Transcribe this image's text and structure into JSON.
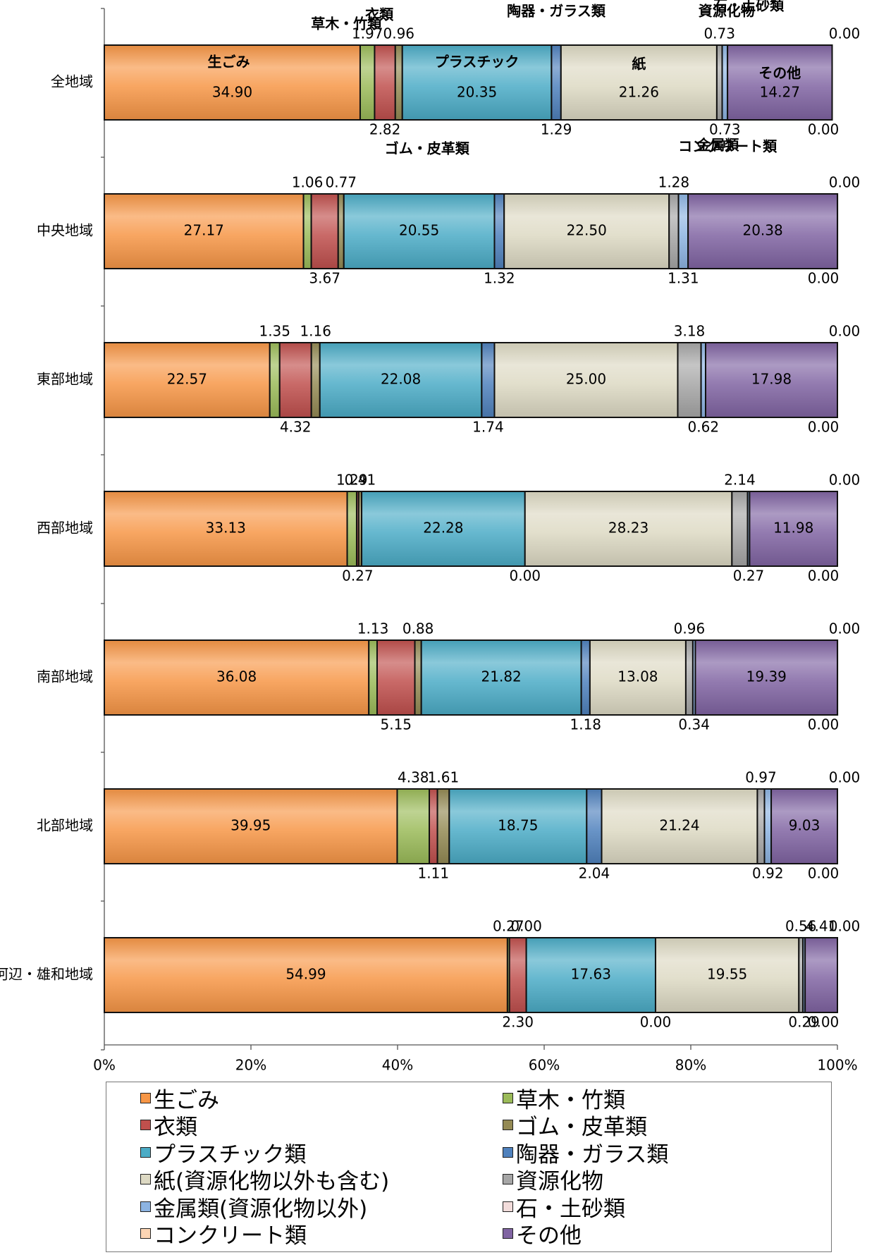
{
  "chart_data": {
    "type": "bar",
    "orientation": "horizontal",
    "stacking": "percent",
    "categories": [
      "全地域",
      "中央地域",
      "東部地域",
      "西部地域",
      "南部地域",
      "北部地域",
      "河辺・雄和地域"
    ],
    "xlim": [
      0,
      100
    ],
    "x_ticks": [
      "0%",
      "20%",
      "40%",
      "60%",
      "80%",
      "100%"
    ],
    "grid": false,
    "legend_position": "bottom",
    "series": [
      {
        "name": "生ごみ",
        "color": "#F79646",
        "values": [
          34.9,
          27.17,
          22.57,
          33.13,
          36.08,
          39.95,
          54.99
        ]
      },
      {
        "name": "草木・竹類",
        "color": "#9BBB59",
        "values": [
          1.97,
          1.06,
          1.35,
          1.29,
          1.13,
          4.38,
          0.27
        ]
      },
      {
        "name": "衣類",
        "color": "#C0504D",
        "values": [
          2.82,
          3.67,
          4.32,
          0.27,
          5.15,
          1.11,
          2.3
        ]
      },
      {
        "name": "ゴム・皮革類",
        "color": "#948A54",
        "values": [
          0.96,
          0.77,
          1.16,
          0.41,
          0.88,
          1.61,
          0.0
        ]
      },
      {
        "name": "プラスチック類",
        "color": "#4BACC6",
        "values": [
          20.35,
          20.55,
          22.08,
          22.28,
          21.82,
          18.75,
          17.63
        ]
      },
      {
        "name": "陶器・ガラス類",
        "color": "#4F81BD",
        "values": [
          1.29,
          1.32,
          1.74,
          0.0,
          1.18,
          2.04,
          0.0
        ]
      },
      {
        "name": "紙(資源化物以外も含む)",
        "color": "#DDD9C3",
        "values": [
          21.26,
          22.5,
          25.0,
          28.23,
          13.08,
          21.24,
          19.55
        ]
      },
      {
        "name": "資源化物",
        "color": "#A6A6A6",
        "values": [
          0.73,
          1.28,
          3.18,
          2.14,
          0.96,
          0.97,
          0.56
        ]
      },
      {
        "name": "金属類(資源化物以外)",
        "color": "#8DB4E2",
        "values": [
          0.73,
          1.31,
          0.62,
          0.27,
          0.34,
          0.92,
          0.29
        ]
      },
      {
        "name": "石・土砂類",
        "color": "#F2DCDB",
        "values": [
          0.0,
          0.0,
          0.0,
          0.0,
          0.0,
          0.0,
          0.0
        ]
      },
      {
        "name": "コンクリート類",
        "color": "#FCD5B4",
        "values": [
          0.0,
          0.0,
          0.0,
          0.0,
          0.0,
          0.0,
          0.0
        ]
      },
      {
        "name": "その他",
        "color": "#8064A2",
        "values": [
          14.27,
          20.38,
          17.98,
          11.98,
          19.39,
          9.03,
          4.41
        ]
      }
    ],
    "annotations": [
      {
        "category": "全地域",
        "series": "生ごみ",
        "text": "生ごみ"
      },
      {
        "category": "全地域",
        "series": "プラスチック類",
        "text": "プラスチック"
      },
      {
        "category": "全地域",
        "series": "紙(資源化物以外も含む)",
        "text": "紙"
      },
      {
        "category": "全地域",
        "series": "その他",
        "text": "その他"
      },
      {
        "category": "全地域",
        "series": "草木・竹類",
        "text": "草木・竹類"
      },
      {
        "category": "全地域",
        "series": "衣類",
        "text": "衣類"
      },
      {
        "category": "全地域",
        "series": "陶器・ガラス類",
        "text": "陶器・ガラス類"
      },
      {
        "category": "全地域",
        "series": "資源化物",
        "text": "資源化物"
      },
      {
        "category": "全地域",
        "series": "石・土砂類",
        "text": "石・土砂類"
      },
      {
        "category": "全地域",
        "series": "ゴム・皮革類",
        "text": "ゴム・皮革類"
      },
      {
        "category": "全地域",
        "series": "金属類(資源化物以外)",
        "text": "金属類"
      },
      {
        "category": "全地域",
        "series": "コンクリート類",
        "text": "コンクリート類"
      }
    ]
  }
}
